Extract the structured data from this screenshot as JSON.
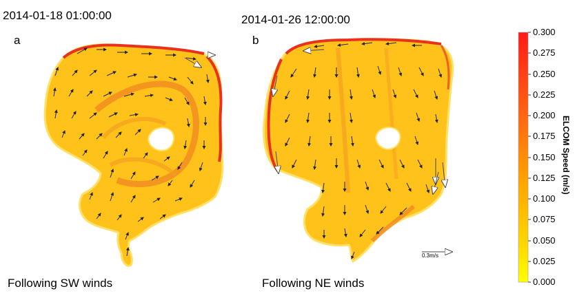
{
  "panels": [
    {
      "timestamp": "2014-01-18 01:00:00",
      "label": "a",
      "caption": "Following SW winds"
    },
    {
      "timestamp": "2014-01-26 12:00:00",
      "label": "b",
      "caption": "Following NE winds"
    }
  ],
  "scale_arrow_label": "0.3m/s",
  "colorbar": {
    "title": "ELCOM Speed (m/s)",
    "ticks": [
      "0.300",
      "0.275",
      "0.250",
      "0.225",
      "0.200",
      "0.175",
      "0.150",
      "0.125",
      "0.100",
      "0.075",
      "0.050",
      "0.025",
      "0.000"
    ],
    "color_top": "#ff1a1a",
    "color_mid": "#ff9900",
    "color_bottom": "#ffff00"
  },
  "colors": {
    "lake_fill": "#ffc21a",
    "current_red": "#e8321e",
    "current_orange": "#f08a20",
    "arrow": "#222222"
  }
}
